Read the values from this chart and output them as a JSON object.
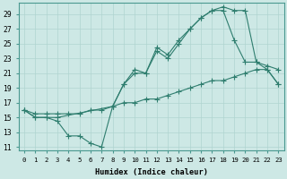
{
  "line_color": "#2e7d6e",
  "bg_color": "#cde8e5",
  "grid_color": "#b0d4d0",
  "xlabel": "Humidex (Indice chaleur)",
  "ylabel_ticks": [
    11,
    13,
    15,
    17,
    19,
    21,
    23,
    25,
    27,
    29
  ],
  "xtick_labels": [
    "0",
    "1",
    "2",
    "3",
    "4",
    "5",
    "6",
    "7",
    "8",
    "9",
    "10",
    "11",
    "12",
    "13",
    "14",
    "15",
    "16",
    "17",
    "18",
    "19",
    "20",
    "21",
    "22",
    "23"
  ],
  "ylim": [
    10.5,
    30.5
  ],
  "xlim": [
    -0.5,
    23.5
  ],
  "lineA_x": [
    0,
    1,
    2,
    3,
    4,
    5,
    6,
    7,
    8,
    9,
    10,
    11,
    12,
    13,
    14,
    15,
    16,
    17,
    18,
    19,
    20,
    21,
    22,
    23
  ],
  "lineA_y": [
    16,
    15,
    15,
    14.5,
    12.5,
    12.5,
    11.5,
    11,
    16.5,
    19.5,
    21.5,
    21,
    24.5,
    23.5,
    25.5,
    27,
    28.5,
    29.5,
    30,
    29.5,
    29.5,
    22.5,
    21.5,
    19.5
  ],
  "lineB_x": [
    0,
    1,
    2,
    3,
    8,
    9,
    10,
    11,
    12,
    13,
    14,
    15,
    16,
    17,
    18,
    19,
    20,
    21,
    22,
    23
  ],
  "lineB_y": [
    16,
    15,
    15,
    15,
    16.5,
    19.5,
    21,
    21,
    24,
    23,
    25,
    27,
    28.5,
    29.5,
    29.5,
    25.5,
    22.5,
    22.5,
    22,
    21.5
  ],
  "lineC_x": [
    0,
    1,
    2,
    3,
    4,
    5,
    6,
    7,
    8,
    9,
    10,
    11,
    12,
    13,
    14,
    15,
    16,
    17,
    18,
    19,
    20,
    21,
    22,
    23
  ],
  "lineC_y": [
    16,
    15.5,
    15.5,
    15.5,
    15.5,
    15.5,
    16,
    16,
    16.5,
    17,
    17,
    17.5,
    17.5,
    18,
    18.5,
    19,
    19.5,
    20,
    20,
    20.5,
    21,
    21.5,
    21.5,
    19.5
  ]
}
